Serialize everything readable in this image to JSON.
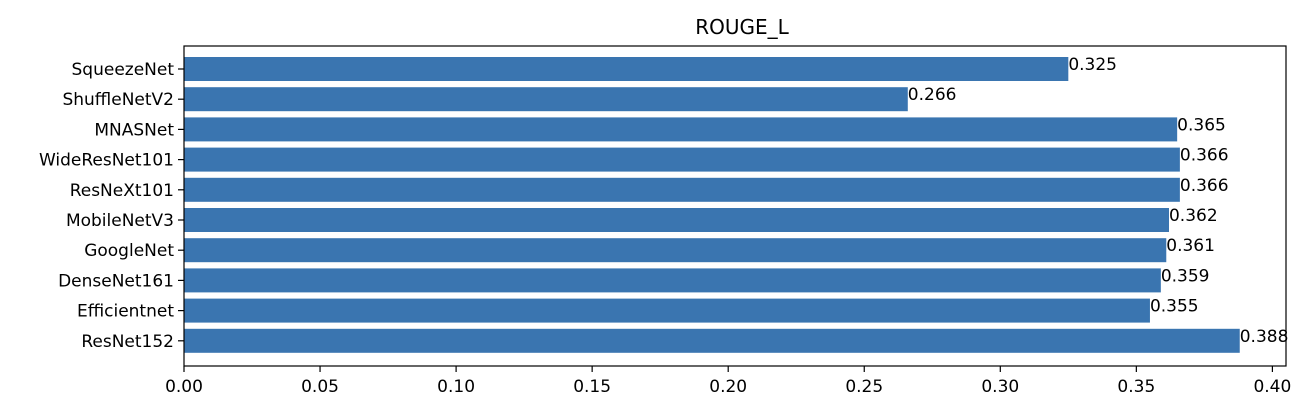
{
  "chart_data": {
    "type": "bar",
    "orientation": "horizontal",
    "title": "ROUGE_L",
    "xlabel": "",
    "ylabel": "",
    "categories": [
      "SqueezeNet",
      "ShuffleNetV2",
      "MNASNet",
      "WideResNet101",
      "ResNeXt101",
      "MobileNetV3",
      "GoogleNet",
      "DenseNet161",
      "Efficientnet",
      "ResNet152"
    ],
    "values": [
      0.325,
      0.266,
      0.365,
      0.366,
      0.366,
      0.362,
      0.361,
      0.359,
      0.355,
      0.388
    ],
    "data_labels": [
      "0.325",
      "0.266",
      "0.365",
      "0.366",
      "0.366",
      "0.362",
      "0.361",
      "0.359",
      "0.355",
      "0.388"
    ],
    "xlim": [
      0,
      0.405
    ],
    "xticks": [
      0.0,
      0.05,
      0.1,
      0.15,
      0.2,
      0.25,
      0.3,
      0.35,
      0.4
    ],
    "xtick_labels": [
      "0.00",
      "0.05",
      "0.10",
      "0.15",
      "0.20",
      "0.25",
      "0.30",
      "0.35",
      "0.40"
    ],
    "grid": false,
    "legend": "none",
    "bar_color": "#3a75b0"
  }
}
